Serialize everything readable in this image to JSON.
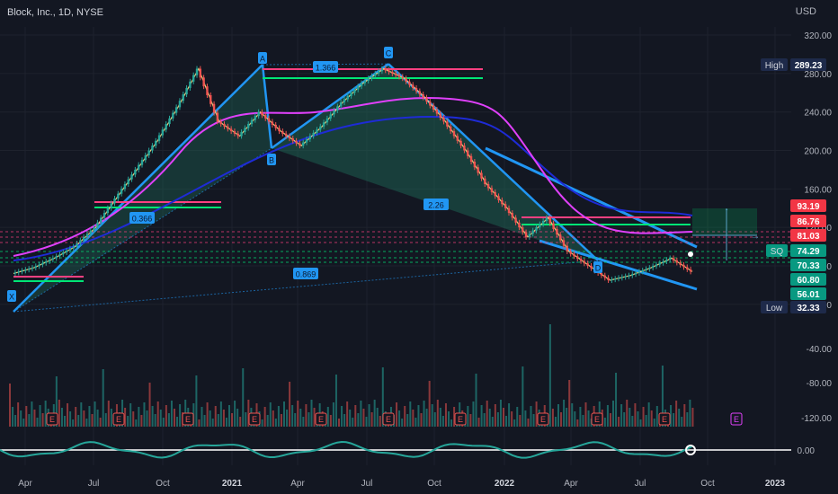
{
  "header": {
    "title": "Block, Inc., 1D, NYSE",
    "currency": "USD"
  },
  "colors": {
    "background": "#131722",
    "up": "#26a69a",
    "down": "#ef5350",
    "pattern_fill": "#1f6f5c",
    "pattern_line": "#2196f3",
    "ma_fast": "#f0d07a",
    "ma_mid": "#e040fb",
    "ma_slow": "#1e2bd6",
    "resistance": "#ff4081",
    "support": "#00e676"
  },
  "chart_data": {
    "type": "candlestick",
    "symbol": "SQ",
    "x_ticks": [
      "Apr",
      "Jul",
      "Oct",
      "2021",
      "Apr",
      "Jul",
      "Oct",
      "2022",
      "Apr",
      "Jul",
      "Oct",
      "2023"
    ],
    "y_ticks": [
      320,
      280,
      240,
      200,
      160,
      120,
      80,
      40
    ],
    "volume_ticks": [
      "-40.00",
      "-80.00",
      "-120.00"
    ],
    "oscillator_ticks": [
      "0.00"
    ],
    "price_path": [
      [
        0,
        72
      ],
      [
        1,
        78
      ],
      [
        2,
        88
      ],
      [
        3,
        100
      ],
      [
        4,
        120
      ],
      [
        5,
        150
      ],
      [
        6,
        180
      ],
      [
        7,
        210
      ],
      [
        8,
        245
      ],
      [
        9,
        285
      ],
      [
        10,
        230
      ],
      [
        11,
        215
      ],
      [
        12,
        240
      ],
      [
        13,
        220
      ],
      [
        14,
        205
      ],
      [
        15,
        225
      ],
      [
        16,
        250
      ],
      [
        17,
        270
      ],
      [
        18,
        285
      ],
      [
        19,
        275
      ],
      [
        20,
        255
      ],
      [
        21,
        230
      ],
      [
        22,
        200
      ],
      [
        23,
        165
      ],
      [
        24,
        140
      ],
      [
        25,
        110
      ],
      [
        26,
        130
      ],
      [
        27,
        95
      ],
      [
        28,
        80
      ],
      [
        29,
        65
      ],
      [
        30,
        70
      ],
      [
        31,
        78
      ],
      [
        32,
        88
      ],
      [
        33,
        74
      ]
    ],
    "harmonic_points": [
      {
        "label": "X",
        "value": 32.33
      },
      {
        "label": "A",
        "value": 289.23
      },
      {
        "label": "B",
        "value": 190
      },
      {
        "label": "C",
        "value": 290
      },
      {
        "label": "D",
        "value": 60
      }
    ],
    "ratios": [
      "0.366",
      "1.366",
      "2.26",
      "0.869"
    ],
    "price_labels": [
      {
        "label": "High",
        "value": "289.23",
        "color": "#1e2a4a"
      },
      {
        "label": "",
        "value": "93.19",
        "color": "#f23645"
      },
      {
        "label": "",
        "value": "86.76",
        "color": "#f23645"
      },
      {
        "label": "",
        "value": "81.03",
        "color": "#f23645"
      },
      {
        "label": "SQ",
        "value": "74.29",
        "color": "#089981"
      },
      {
        "label": "",
        "value": "70.33",
        "color": "#089981"
      },
      {
        "label": "",
        "value": "60.80",
        "color": "#089981"
      },
      {
        "label": "",
        "value": "56.01",
        "color": "#089981"
      },
      {
        "label": "Low",
        "value": "32.33",
        "color": "#1e2a4a"
      }
    ],
    "earnings_marker": "E"
  }
}
